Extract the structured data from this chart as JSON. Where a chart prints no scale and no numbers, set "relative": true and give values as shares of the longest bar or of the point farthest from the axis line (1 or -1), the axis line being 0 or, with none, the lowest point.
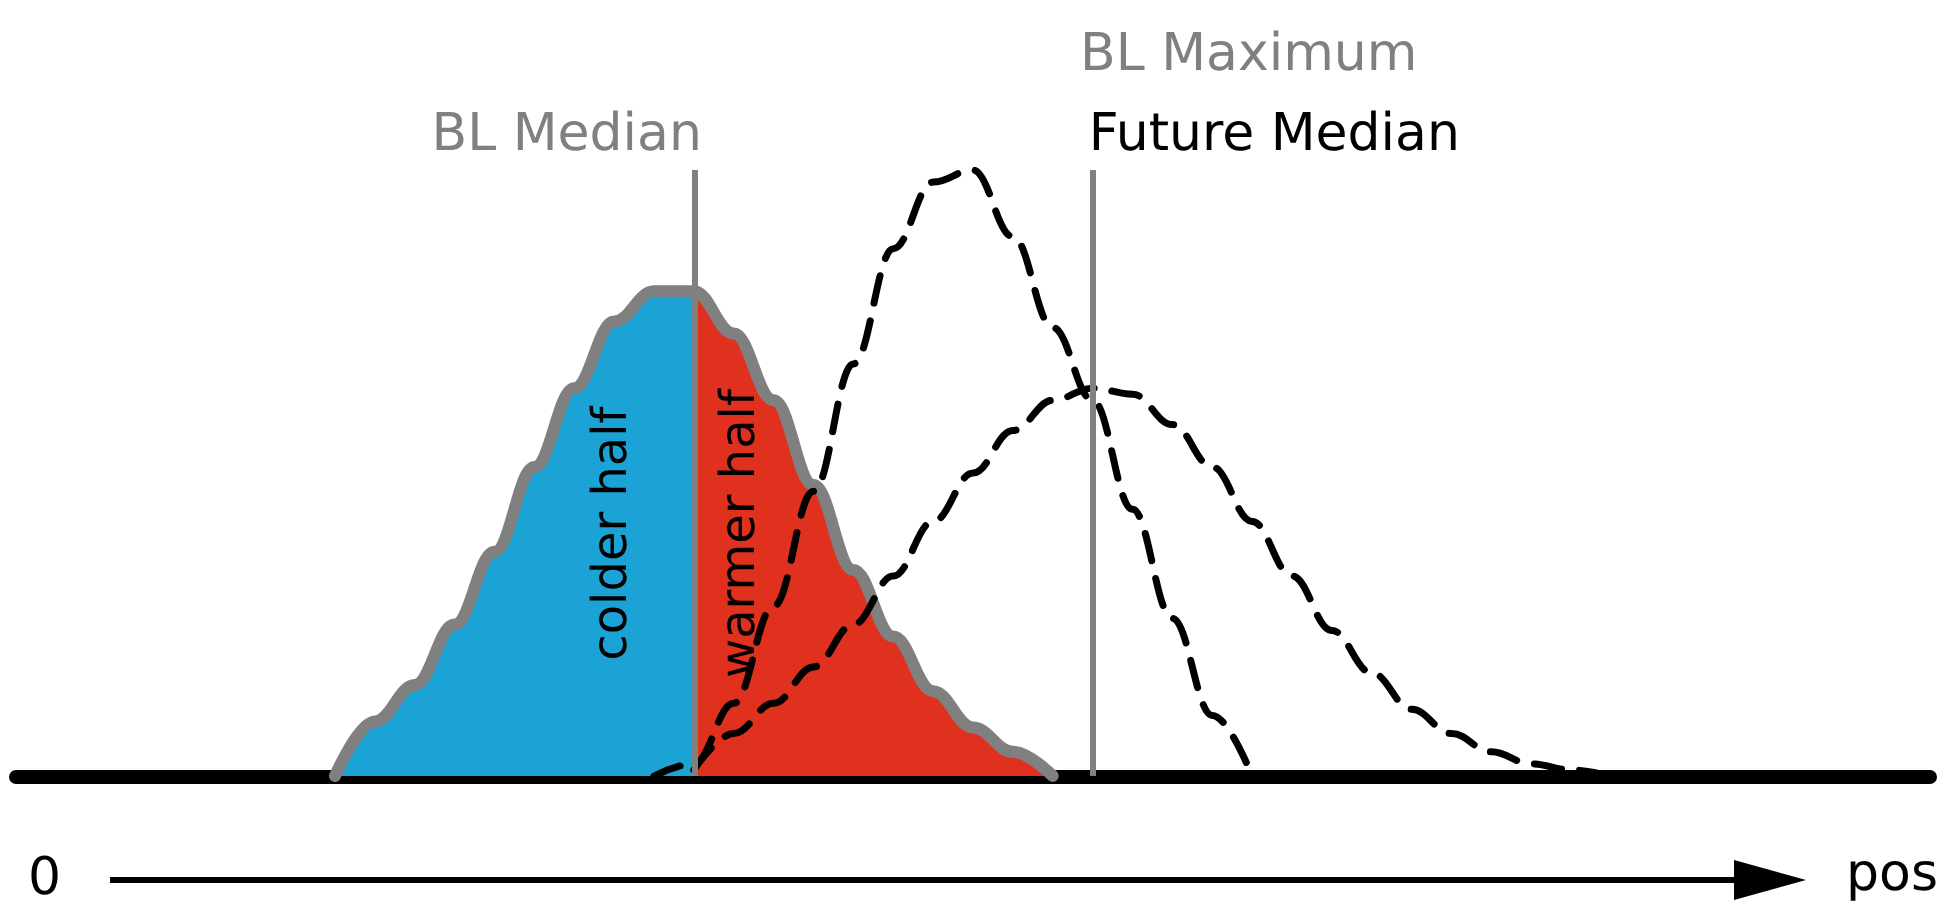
{
  "chart_data": {
    "type": "area",
    "relative": true,
    "xlabel": "pos",
    "marker": "none",
    "categories": [
      null,
      null,
      null,
      null,
      null,
      null,
      null,
      null,
      null,
      null,
      null,
      null,
      null,
      null,
      null,
      null,
      null,
      null,
      null,
      null,
      null,
      null,
      null,
      null,
      null,
      null,
      null,
      null,
      null,
      null,
      null,
      null,
      null,
      null,
      null,
      null,
      null,
      null,
      null,
      null,
      null,
      null,
      null,
      null,
      null,
      null,
      null,
      null,
      null
    ],
    "series": [
      {
        "name": "colder half",
        "color": "#1ba3d6",
        "values": [
          null,
          null,
          null,
          null,
          null,
          null,
          null,
          null,
          0,
          0.09,
          0.15,
          0.25,
          0.37,
          0.51,
          0.64,
          0.75,
          0.8,
          0.8,
          null,
          null,
          null,
          null,
          null,
          null,
          null,
          null,
          null,
          null,
          null,
          null,
          null,
          null,
          null,
          null,
          null,
          null,
          null,
          null,
          null,
          null,
          null,
          null,
          null,
          null,
          null,
          null,
          null,
          null,
          null
        ]
      },
      {
        "name": "warmer half",
        "color": "#e0301e",
        "values": [
          null,
          null,
          null,
          null,
          null,
          null,
          null,
          null,
          null,
          null,
          null,
          null,
          null,
          null,
          null,
          null,
          null,
          0.8,
          0.73,
          0.62,
          0.48,
          0.34,
          0.23,
          0.14,
          0.08,
          0.04,
          0,
          null,
          null,
          null,
          null,
          null,
          null,
          null,
          null,
          null,
          null,
          null,
          null,
          null,
          null,
          null,
          null,
          null,
          null,
          null,
          null,
          null,
          null
        ]
      },
      {
        "type": "line",
        "color": "#808080",
        "values": [
          null,
          null,
          null,
          null,
          null,
          null,
          null,
          null,
          0,
          0.09,
          0.15,
          0.25,
          0.37,
          0.51,
          0.64,
          0.75,
          0.8,
          0.8,
          0.73,
          0.62,
          0.48,
          0.34,
          0.23,
          0.14,
          0.08,
          0.04,
          0,
          null,
          null,
          null,
          null,
          null,
          null,
          null,
          null,
          null,
          null,
          null,
          null,
          null,
          null,
          null,
          null,
          null,
          null,
          null,
          null,
          null,
          null
        ]
      },
      {
        "type": "line",
        "color": "#000000",
        "line_style": "dashed",
        "values": [
          null,
          null,
          null,
          null,
          null,
          null,
          null,
          null,
          null,
          null,
          null,
          null,
          null,
          null,
          null,
          null,
          0,
          0.02,
          0.12,
          0.28,
          0.47,
          0.68,
          0.87,
          0.98,
          1,
          0.89,
          0.74,
          0.62,
          0.44,
          0.26,
          0.1,
          0,
          null,
          null,
          null,
          null,
          null,
          null,
          null,
          null,
          null,
          null,
          null,
          null,
          null,
          null,
          null,
          null,
          null
        ]
      },
      {
        "type": "line",
        "color": "#000000",
        "line_style": "dashed",
        "values": [
          null,
          null,
          null,
          null,
          null,
          null,
          null,
          null,
          null,
          null,
          null,
          null,
          null,
          null,
          null,
          null,
          null,
          0.01,
          0.07,
          0.12,
          0.18,
          0.25,
          0.33,
          0.42,
          0.5,
          0.57,
          0.62,
          0.64,
          0.63,
          0.58,
          0.51,
          0.42,
          0.33,
          0.24,
          0.17,
          0.11,
          0.07,
          0.04,
          0.02,
          0.01,
          0,
          null,
          null,
          null,
          null,
          null,
          null,
          null,
          null
        ]
      }
    ],
    "annotations": [
      "BL Median",
      "BL Maximum",
      "Future Median",
      "0"
    ]
  }
}
